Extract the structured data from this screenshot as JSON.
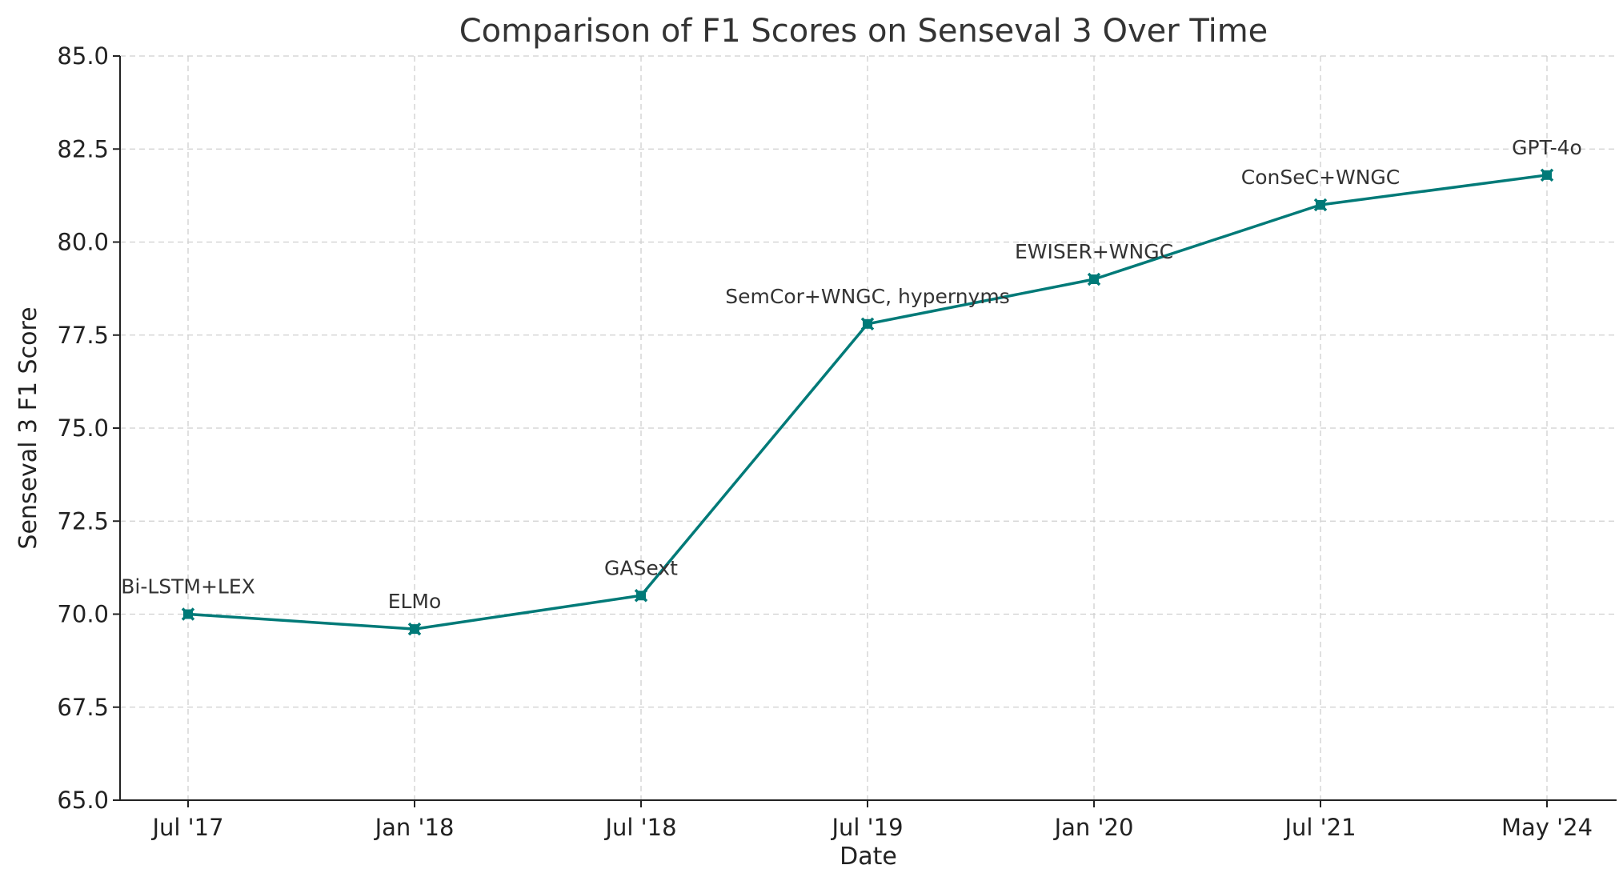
{
  "chart_data": {
    "type": "line",
    "title": "Comparison of F1 Scores on Senseval 3 Over Time",
    "xlabel": "Date",
    "ylabel": "Senseval 3 F1 Score",
    "categories": [
      "Jul '17",
      "Jan '18",
      "Jul '18",
      "Jul '19",
      "Jan '20",
      "Jul '21",
      "May '24"
    ],
    "series": [
      {
        "values": [
          70.0,
          69.6,
          70.5,
          77.8,
          79.0,
          81.0,
          81.8
        ],
        "labels": [
          "Bi-LSTM+LEX",
          "ELMo",
          "GASext",
          "SemCor+WNGC, hypernyms",
          "EWISER+WNGC",
          "ConSeC+WNGC",
          "GPT-4o"
        ]
      }
    ],
    "ylim": [
      65.0,
      85.0
    ],
    "yticks": [
      "65.0",
      "67.5",
      "70.0",
      "72.5",
      "75.0",
      "77.5",
      "80.0",
      "82.5",
      "85.0"
    ],
    "grid": true,
    "colors": {
      "line": "#007a78",
      "grid": "#cfcfcf",
      "axis": "#222222"
    }
  }
}
